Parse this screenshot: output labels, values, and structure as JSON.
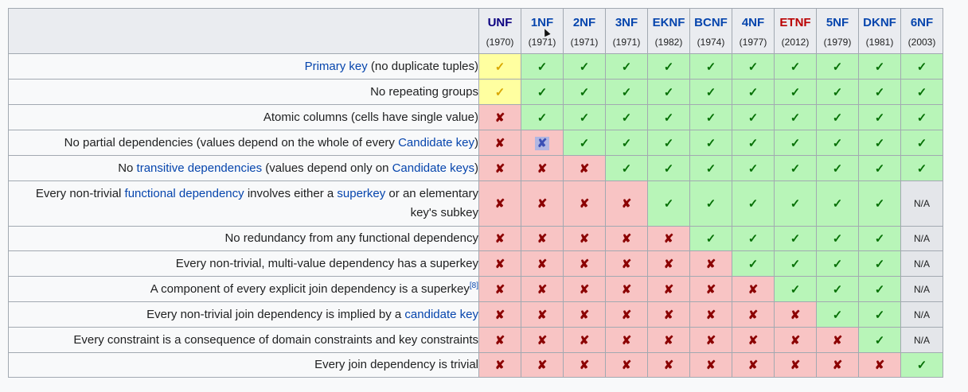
{
  "header": {
    "forms": [
      {
        "name": "UNF",
        "year": "(1970)",
        "style": "dark"
      },
      {
        "name": "1NF",
        "year": "(1971)",
        "style": "link"
      },
      {
        "name": "2NF",
        "year": "(1971)",
        "style": "link"
      },
      {
        "name": "3NF",
        "year": "(1971)",
        "style": "link"
      },
      {
        "name": "EKNF",
        "year": "(1982)",
        "style": "link"
      },
      {
        "name": "BCNF",
        "year": "(1974)",
        "style": "link"
      },
      {
        "name": "4NF",
        "year": "(1977)",
        "style": "link"
      },
      {
        "name": "ETNF",
        "year": "(2012)",
        "style": "red"
      },
      {
        "name": "5NF",
        "year": "(1979)",
        "style": "link"
      },
      {
        "name": "DKNF",
        "year": "(1981)",
        "style": "link"
      },
      {
        "name": "6NF",
        "year": "(2003)",
        "style": "link"
      }
    ]
  },
  "symbols": {
    "check": "✓",
    "cross": "✘",
    "na": "N/A"
  },
  "colors": {
    "yes": "#b8f5b8",
    "no": "#f8c4c4",
    "partial": "#ffffa0",
    "na": "#e4e6ea",
    "link": "#0645ad",
    "new_link": "#ba0000"
  },
  "rows": [
    {
      "label": [
        {
          "t": "Primary key",
          "link": true
        },
        {
          "t": " (no duplicate tuples)"
        }
      ],
      "cells": [
        "y",
        "g",
        "g",
        "g",
        "g",
        "g",
        "g",
        "g",
        "g",
        "g",
        "g"
      ]
    },
    {
      "label": [
        {
          "t": "No repeating groups"
        }
      ],
      "cells": [
        "y",
        "g",
        "g",
        "g",
        "g",
        "g",
        "g",
        "g",
        "g",
        "g",
        "g"
      ]
    },
    {
      "label": [
        {
          "t": "Atomic columns (cells have single value)"
        }
      ],
      "cells": [
        "r",
        "g",
        "g",
        "g",
        "g",
        "g",
        "g",
        "g",
        "g",
        "g",
        "g"
      ]
    },
    {
      "label": [
        {
          "t": "No partial dependencies (values depend on the whole of every "
        },
        {
          "t": "Candidate key",
          "link": true
        },
        {
          "t": ")"
        }
      ],
      "cells": [
        "r",
        "rs",
        "g",
        "g",
        "g",
        "g",
        "g",
        "g",
        "g",
        "g",
        "g"
      ]
    },
    {
      "label": [
        {
          "t": "No "
        },
        {
          "t": "transitive dependencies",
          "link": true
        },
        {
          "t": " (values depend only on "
        },
        {
          "t": "Candidate keys",
          "link": true
        },
        {
          "t": ")"
        }
      ],
      "cells": [
        "r",
        "r",
        "r",
        "g",
        "g",
        "g",
        "g",
        "g",
        "g",
        "g",
        "g"
      ]
    },
    {
      "label": [
        {
          "t": "Every non-trivial "
        },
        {
          "t": "functional dependency",
          "link": true
        },
        {
          "t": " involves either a "
        },
        {
          "t": "superkey",
          "link": true
        },
        {
          "t": " or an elementary key's subkey"
        }
      ],
      "cells": [
        "r",
        "r",
        "r",
        "r",
        "g",
        "g",
        "g",
        "g",
        "g",
        "g",
        "na"
      ],
      "tall": true
    },
    {
      "label": [
        {
          "t": "No redundancy from any functional dependency"
        }
      ],
      "cells": [
        "r",
        "r",
        "r",
        "r",
        "r",
        "g",
        "g",
        "g",
        "g",
        "g",
        "na"
      ]
    },
    {
      "label": [
        {
          "t": "Every non-trivial, multi-value dependency has a superkey"
        }
      ],
      "cells": [
        "r",
        "r",
        "r",
        "r",
        "r",
        "r",
        "g",
        "g",
        "g",
        "g",
        "na"
      ]
    },
    {
      "label": [
        {
          "t": "A component of every explicit join dependency is a superkey"
        },
        {
          "t": "[8]",
          "sup": true
        }
      ],
      "cells": [
        "r",
        "r",
        "r",
        "r",
        "r",
        "r",
        "r",
        "g",
        "g",
        "g",
        "na"
      ]
    },
    {
      "label": [
        {
          "t": "Every non-trivial join dependency is implied by a "
        },
        {
          "t": "candidate key",
          "link": true
        }
      ],
      "cells": [
        "r",
        "r",
        "r",
        "r",
        "r",
        "r",
        "r",
        "r",
        "g",
        "g",
        "na"
      ]
    },
    {
      "label": [
        {
          "t": "Every constraint is a consequence of domain constraints and key constraints"
        }
      ],
      "cells": [
        "r",
        "r",
        "r",
        "r",
        "r",
        "r",
        "r",
        "r",
        "r",
        "g",
        "na"
      ]
    },
    {
      "label": [
        {
          "t": "Every join dependency is trivial"
        }
      ],
      "cells": [
        "r",
        "r",
        "r",
        "r",
        "r",
        "r",
        "r",
        "r",
        "r",
        "r",
        "g"
      ]
    }
  ]
}
